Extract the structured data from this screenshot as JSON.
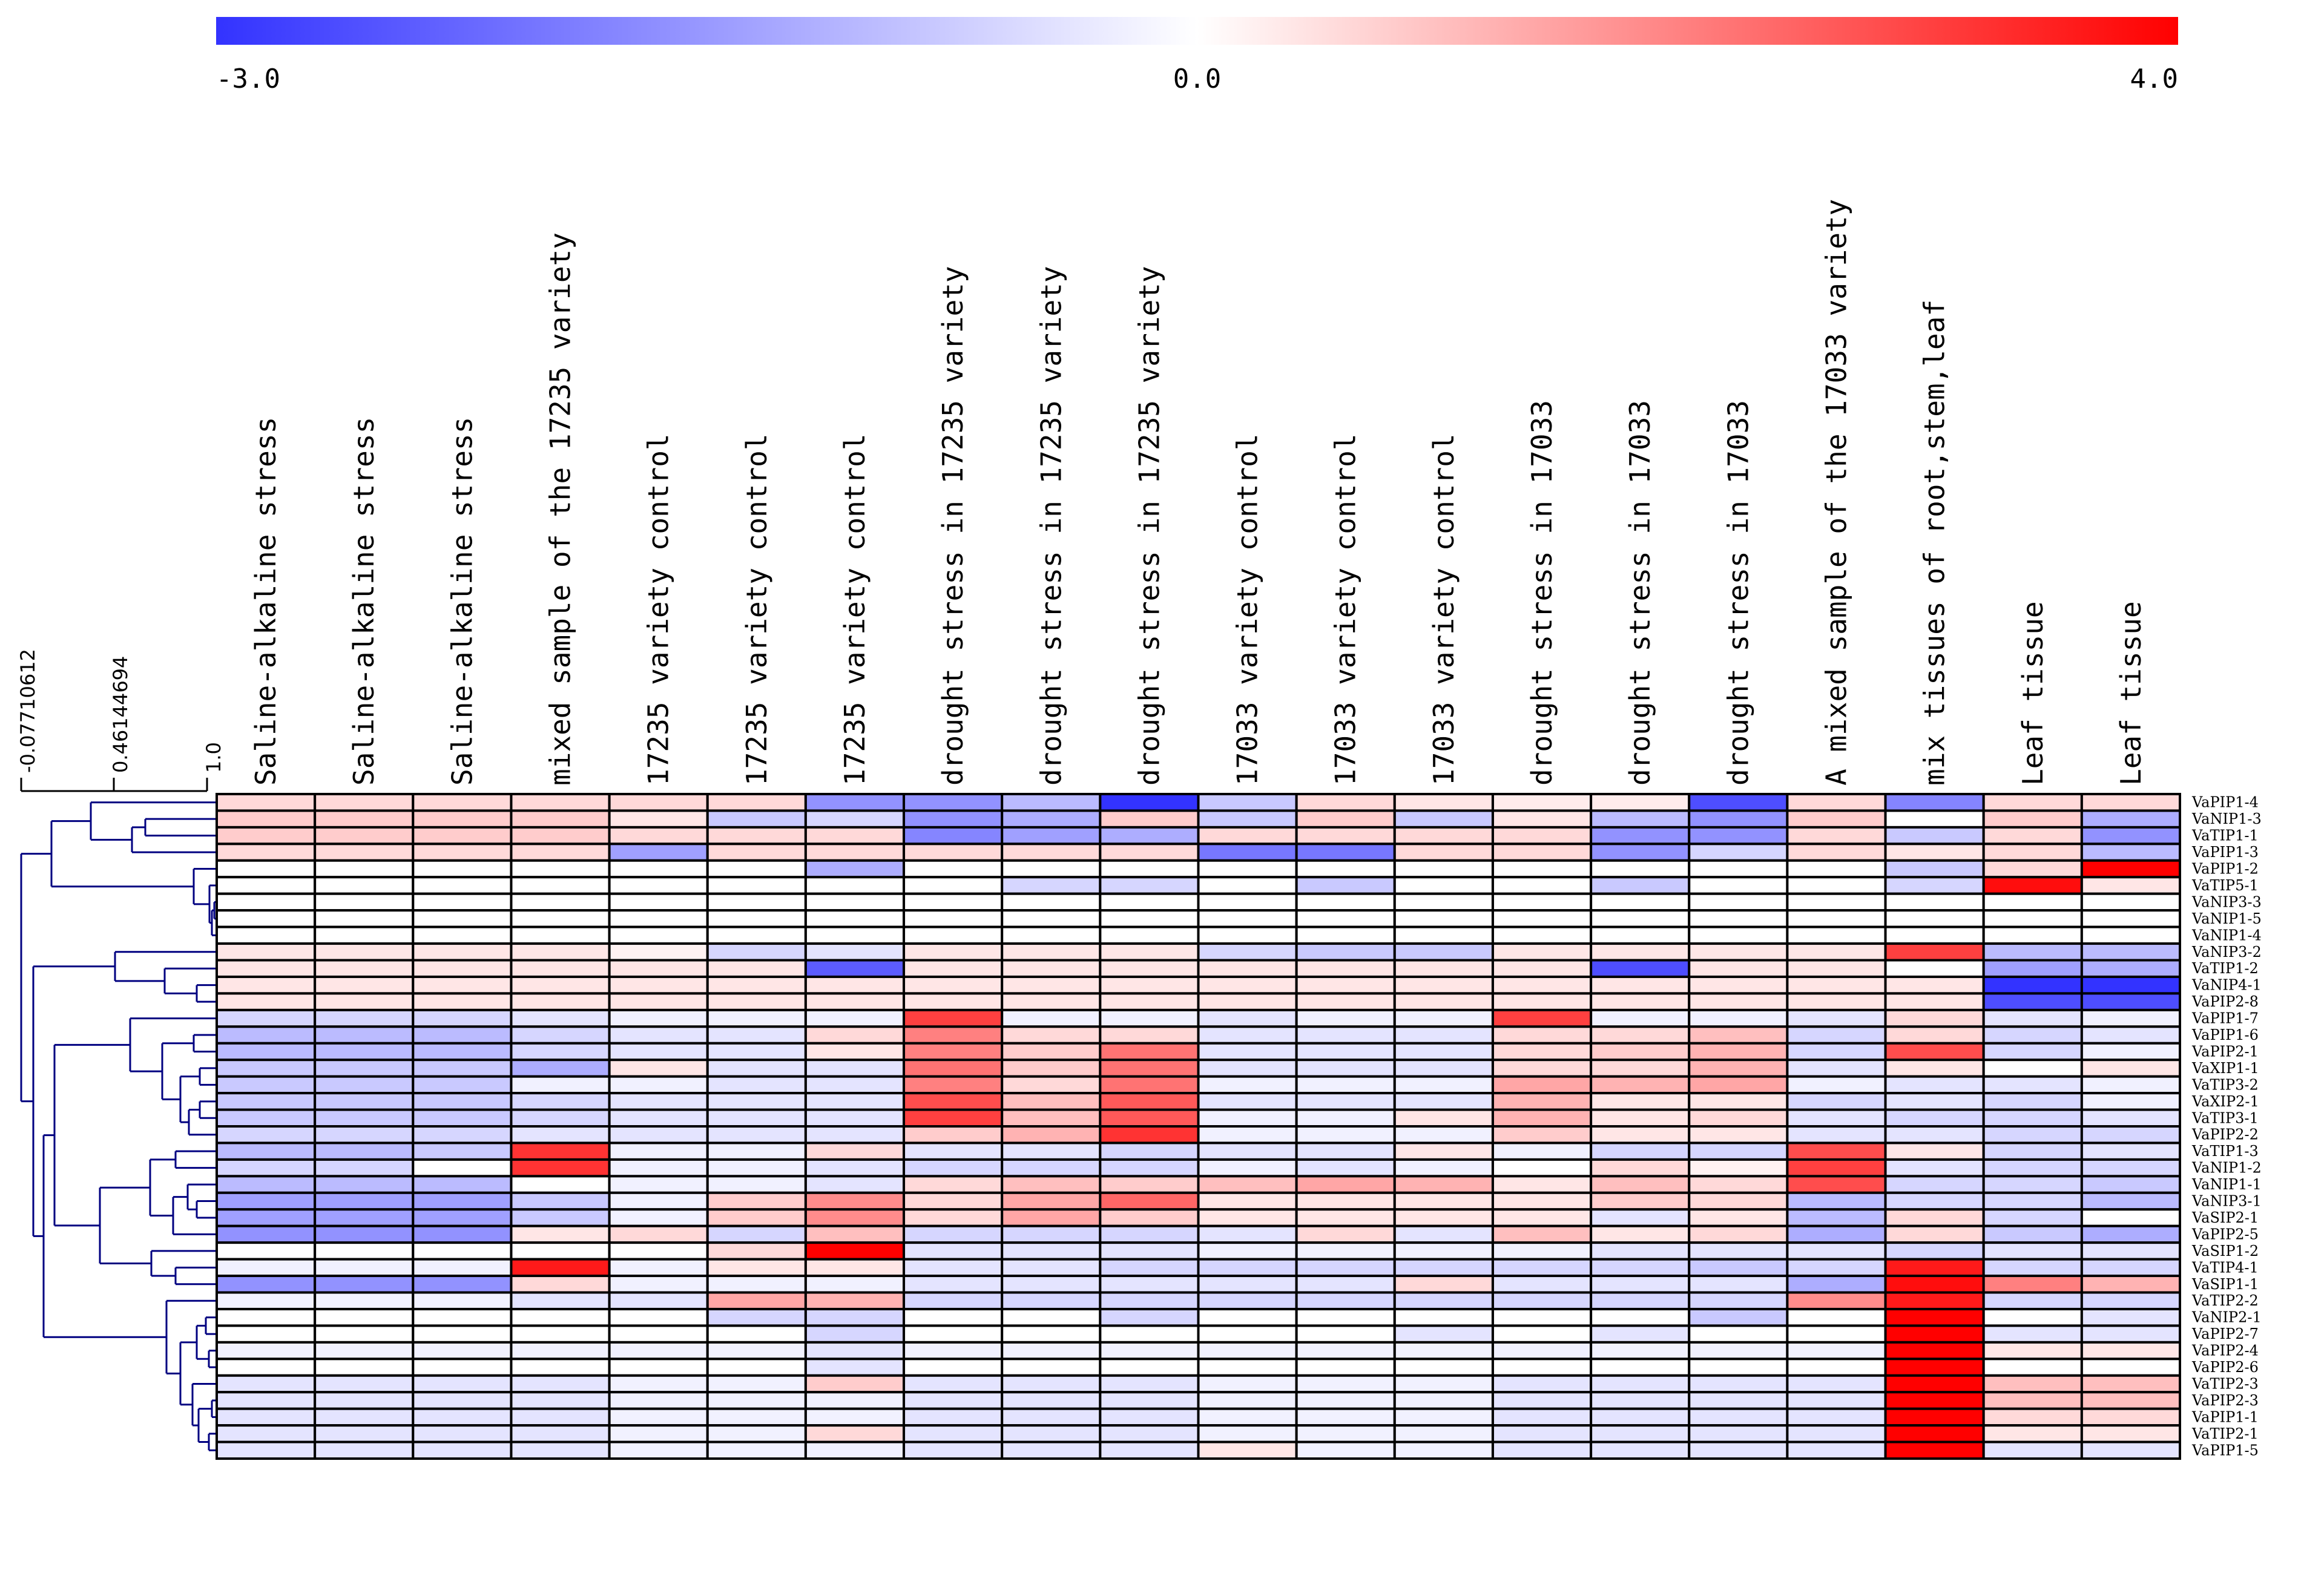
{
  "chart_data": {
    "type": "heatmap",
    "color_scale": {
      "min": -3.0,
      "mid": 0.0,
      "max": 4.0,
      "min_label": "-3.0",
      "mid_label": "0.0",
      "max_label": "4.0",
      "low_color": "#3333ff",
      "mid_color": "#ffffff",
      "high_color": "#ff0000"
    },
    "dendrogram_scale": [
      "-0.07710612",
      "0.46144694",
      "1.0"
    ],
    "columns": [
      "Saline-alkaline stress",
      "Saline-alkaline stress",
      "Saline-alkaline stress",
      "mixed sample of the 17235 variety",
      "17235 variety control",
      "17235 variety control",
      "17235 variety control",
      "drought stress in 17235 variety",
      "drought stress in 17235 variety",
      "drought stress in 17235 variety",
      "17033 variety control",
      "17033 variety control",
      "17033 variety control",
      "drought stress in 17033",
      "drought stress in 17033",
      "drought stress in 17033",
      "A mixed sample of the 17033 variety",
      "mix tissues of root,stem,leaf",
      "Leaf tissue",
      "Leaf tissue"
    ],
    "rows": [
      "VaPIP1-4",
      "VaNIP1-3",
      "VaTIP1-1",
      "VaPIP1-3",
      "VaPIP1-2",
      "VaTIP5-1",
      "VaNIP3-3",
      "VaNIP1-5",
      "VaNIP1-4",
      "VaNIP3-2",
      "VaTIP1-2",
      "VaNIP4-1",
      "VaPIP2-8",
      "VaPIP1-7",
      "VaPIP1-6",
      "VaPIP2-1",
      "VaXIP1-1",
      "VaTIP3-2",
      "VaXIP2-1",
      "VaTIP3-1",
      "VaPIP2-2",
      "VaTIP1-3",
      "VaNIP1-2",
      "VaNIP1-1",
      "VaNIP3-1",
      "VaSIP2-1",
      "VaPIP2-5",
      "VaSIP1-2",
      "VaTIP4-1",
      "VaSIP1-1",
      "VaTIP2-2",
      "VaNIP2-1",
      "VaPIP2-7",
      "VaPIP2-4",
      "VaPIP2-6",
      "VaTIP2-3",
      "VaPIP2-3",
      "VaPIP1-1",
      "VaTIP2-1",
      "VaPIP1-5"
    ],
    "values": [
      [
        0.6,
        0.6,
        0.6,
        0.6,
        0.6,
        0.6,
        -1.6,
        -1.6,
        -1.0,
        -3.0,
        -0.8,
        0.6,
        0.4,
        0.3,
        0.3,
        -2.6,
        0.6,
        -1.8,
        0.6,
        0.6
      ],
      [
        0.8,
        0.8,
        0.8,
        0.8,
        0.4,
        -0.8,
        -0.6,
        -1.6,
        -1.2,
        0.8,
        -0.8,
        0.8,
        -0.8,
        0.4,
        -1.0,
        -1.6,
        0.8,
        0.0,
        0.8,
        -1.2
      ],
      [
        0.8,
        0.8,
        0.8,
        0.8,
        0.6,
        0.6,
        0.6,
        -1.8,
        -1.4,
        -1.2,
        0.6,
        0.6,
        0.6,
        0.6,
        -1.6,
        -1.6,
        0.6,
        -0.8,
        0.6,
        -1.6
      ],
      [
        0.6,
        0.6,
        0.6,
        0.6,
        -1.4,
        0.6,
        0.6,
        0.6,
        0.6,
        0.6,
        -2.0,
        -2.0,
        0.6,
        0.6,
        -1.6,
        -0.6,
        0.6,
        0.4,
        0.6,
        -1.0
      ],
      [
        0.0,
        0.0,
        0.0,
        0.0,
        0.0,
        0.0,
        -1.2,
        0.0,
        0.0,
        0.0,
        0.0,
        0.0,
        0.0,
        0.0,
        0.0,
        0.0,
        0.0,
        -0.8,
        0.6,
        4.0
      ],
      [
        0.0,
        0.0,
        0.0,
        0.0,
        0.0,
        0.0,
        0.0,
        0.0,
        -0.6,
        -0.6,
        0.0,
        -0.8,
        0.0,
        0.0,
        -0.8,
        0.0,
        0.0,
        -0.6,
        3.8,
        0.4
      ],
      [
        0.0,
        0.0,
        0.0,
        0.0,
        0.0,
        0.0,
        0.0,
        0.0,
        0.0,
        0.0,
        0.0,
        0.0,
        0.0,
        0.0,
        0.0,
        0.0,
        0.0,
        0.0,
        0.0,
        0.0
      ],
      [
        0.0,
        0.0,
        0.0,
        0.0,
        0.0,
        0.0,
        0.0,
        0.0,
        0.0,
        0.0,
        0.0,
        0.0,
        0.0,
        0.0,
        0.0,
        0.0,
        0.0,
        0.0,
        0.0,
        0.0
      ],
      [
        0.0,
        0.0,
        0.0,
        0.0,
        0.0,
        0.0,
        0.0,
        0.0,
        0.0,
        0.0,
        0.0,
        0.0,
        0.0,
        0.0,
        0.0,
        0.0,
        0.0,
        0.0,
        0.0,
        0.0
      ],
      [
        0.4,
        0.4,
        0.4,
        0.4,
        0.2,
        -0.6,
        -0.4,
        0.4,
        0.4,
        0.4,
        -0.6,
        -0.8,
        -0.8,
        0.4,
        0.4,
        0.4,
        0.4,
        3.0,
        -1.0,
        -1.0
      ],
      [
        0.4,
        0.4,
        0.4,
        0.4,
        0.4,
        0.4,
        -2.4,
        0.4,
        0.4,
        0.4,
        0.4,
        0.4,
        0.4,
        0.4,
        -2.6,
        0.4,
        0.4,
        0.0,
        -1.4,
        -1.2
      ],
      [
        0.4,
        0.4,
        0.4,
        0.4,
        0.4,
        0.4,
        0.4,
        0.4,
        0.4,
        0.4,
        0.4,
        0.4,
        0.4,
        0.4,
        0.4,
        0.4,
        0.4,
        0.4,
        -3.0,
        -3.0
      ],
      [
        0.4,
        0.4,
        0.4,
        0.4,
        0.4,
        0.4,
        0.4,
        0.4,
        0.4,
        0.4,
        0.4,
        0.4,
        0.4,
        0.4,
        0.4,
        0.4,
        0.4,
        0.4,
        -2.6,
        -2.6
      ],
      [
        -0.6,
        -0.6,
        -0.6,
        -0.4,
        -0.2,
        -0.2,
        -0.2,
        3.0,
        -0.2,
        -0.2,
        -0.4,
        -0.2,
        -0.2,
        3.0,
        -0.2,
        -0.2,
        -0.4,
        0.6,
        -0.4,
        -0.2
      ],
      [
        -1.0,
        -1.0,
        -1.0,
        -0.6,
        -0.4,
        -0.4,
        0.6,
        2.0,
        0.6,
        0.6,
        -0.4,
        -0.4,
        -0.4,
        0.6,
        0.6,
        1.0,
        -0.6,
        0.6,
        -0.6,
        -0.4
      ],
      [
        -1.0,
        -1.0,
        -1.0,
        -0.6,
        -0.4,
        -0.4,
        0.4,
        2.0,
        0.8,
        2.2,
        -0.4,
        -0.4,
        -0.4,
        0.6,
        0.8,
        1.2,
        -0.6,
        2.8,
        -0.6,
        -0.2
      ],
      [
        -0.8,
        -0.8,
        -0.8,
        -1.2,
        0.4,
        -0.4,
        -0.4,
        2.2,
        0.8,
        2.2,
        -0.4,
        -0.4,
        -0.4,
        0.6,
        0.6,
        1.2,
        -0.4,
        0.4,
        0.0,
        0.4
      ],
      [
        -0.8,
        -0.8,
        -0.8,
        -0.2,
        -0.2,
        -0.4,
        -0.4,
        2.0,
        0.6,
        2.2,
        -0.2,
        -0.2,
        -0.2,
        1.4,
        1.2,
        1.4,
        -0.2,
        -0.4,
        -0.4,
        -0.2
      ],
      [
        -0.8,
        -0.8,
        -0.8,
        -0.6,
        -0.4,
        -0.4,
        -0.4,
        2.8,
        1.0,
        2.6,
        -0.4,
        -0.4,
        -0.4,
        1.2,
        0.4,
        0.4,
        -0.6,
        -0.4,
        -0.6,
        -0.2
      ],
      [
        -0.8,
        -0.8,
        -0.8,
        -0.6,
        -0.4,
        -0.4,
        -0.4,
        3.0,
        1.0,
        2.6,
        -0.2,
        -0.2,
        0.4,
        1.2,
        0.4,
        0.6,
        -0.4,
        -0.6,
        -0.6,
        -0.4
      ],
      [
        -0.6,
        -0.6,
        -0.6,
        -0.4,
        -0.4,
        -0.4,
        -0.4,
        0.8,
        1.2,
        3.2,
        -0.2,
        -0.2,
        -0.2,
        0.8,
        0.4,
        0.4,
        -0.4,
        -0.4,
        -0.6,
        -0.6
      ],
      [
        -1.0,
        -1.0,
        -0.8,
        3.2,
        -0.2,
        -0.2,
        0.6,
        -0.4,
        -0.4,
        -0.6,
        -0.4,
        -0.4,
        0.4,
        -0.2,
        -0.6,
        -0.6,
        2.8,
        0.4,
        -0.6,
        -0.4
      ],
      [
        -0.6,
        -0.6,
        0.0,
        3.2,
        -0.2,
        -0.2,
        -0.4,
        -0.6,
        -0.6,
        -0.6,
        -0.2,
        -0.4,
        -0.2,
        0.0,
        0.6,
        0.2,
        3.0,
        -0.4,
        -0.6,
        -0.6
      ],
      [
        -1.0,
        -1.0,
        -1.0,
        0.0,
        -0.2,
        -0.2,
        -0.4,
        0.6,
        1.0,
        0.8,
        1.0,
        1.4,
        1.2,
        0.4,
        1.0,
        0.6,
        2.8,
        -0.6,
        -0.6,
        -0.8
      ],
      [
        -1.4,
        -1.4,
        -1.4,
        -0.8,
        -0.2,
        0.8,
        1.8,
        0.6,
        1.4,
        2.4,
        0.4,
        0.4,
        0.4,
        0.4,
        0.8,
        0.6,
        -1.0,
        -0.6,
        -0.6,
        -1.0
      ],
      [
        -1.4,
        -1.4,
        -1.4,
        -0.8,
        -0.2,
        0.8,
        1.8,
        0.6,
        1.4,
        0.8,
        0.4,
        0.4,
        0.4,
        0.4,
        -0.4,
        0.4,
        -1.0,
        0.6,
        -0.6,
        0.0
      ],
      [
        -1.6,
        -1.6,
        -1.6,
        0.4,
        0.6,
        -0.6,
        1.0,
        -0.6,
        -0.6,
        -0.6,
        -0.4,
        0.6,
        -0.4,
        1.0,
        0.4,
        0.6,
        -1.2,
        0.6,
        -0.8,
        -1.2
      ],
      [
        0.0,
        0.0,
        0.0,
        0.0,
        0.0,
        0.6,
        4.0,
        -0.4,
        -0.4,
        -0.4,
        -0.2,
        -0.2,
        -0.2,
        -0.2,
        -0.4,
        -0.4,
        -0.4,
        -0.6,
        -0.4,
        -0.4
      ],
      [
        -0.2,
        -0.2,
        -0.2,
        3.6,
        -0.2,
        0.4,
        0.4,
        -0.4,
        -0.4,
        -0.6,
        -0.6,
        -0.6,
        -0.6,
        -0.6,
        -0.6,
        -0.8,
        -0.6,
        3.6,
        -0.6,
        -0.6
      ],
      [
        -1.6,
        -1.6,
        -1.6,
        0.6,
        -0.2,
        -0.2,
        -0.2,
        -0.4,
        -0.4,
        -0.4,
        -0.4,
        -0.4,
        0.6,
        -0.4,
        -0.4,
        -0.4,
        -1.2,
        3.8,
        2.0,
        1.2
      ],
      [
        -0.2,
        -0.2,
        -0.2,
        -0.4,
        -0.4,
        1.4,
        1.2,
        -0.6,
        -0.6,
        -0.6,
        -0.6,
        -0.6,
        -0.6,
        -0.6,
        -0.6,
        -0.6,
        1.8,
        3.6,
        -0.6,
        -0.6
      ],
      [
        0.0,
        0.0,
        0.0,
        0.0,
        0.0,
        -0.6,
        -0.6,
        0.0,
        0.0,
        -0.6,
        0.0,
        0.0,
        0.0,
        0.0,
        0.0,
        -0.8,
        0.0,
        4.0,
        0.0,
        -0.4
      ],
      [
        0.0,
        0.0,
        0.0,
        0.0,
        0.0,
        0.0,
        -0.6,
        0.0,
        0.0,
        0.0,
        0.0,
        0.0,
        -0.4,
        0.0,
        -0.4,
        0.0,
        0.0,
        4.0,
        -0.4,
        -0.4
      ],
      [
        -0.2,
        -0.2,
        -0.2,
        -0.2,
        -0.2,
        -0.2,
        -0.4,
        -0.2,
        -0.2,
        -0.2,
        -0.2,
        -0.2,
        -0.2,
        -0.2,
        -0.2,
        -0.2,
        -0.2,
        4.0,
        0.4,
        0.4
      ],
      [
        0.0,
        0.0,
        0.0,
        0.0,
        0.0,
        0.0,
        -0.4,
        0.0,
        0.0,
        0.0,
        0.0,
        0.0,
        0.0,
        0.0,
        0.0,
        0.0,
        0.0,
        4.0,
        0.0,
        0.0
      ],
      [
        -0.4,
        -0.4,
        -0.4,
        -0.4,
        -0.2,
        -0.2,
        0.8,
        -0.4,
        -0.4,
        -0.4,
        -0.2,
        -0.2,
        -0.2,
        -0.4,
        -0.4,
        -0.4,
        -0.4,
        4.0,
        1.0,
        1.0
      ],
      [
        -0.4,
        -0.4,
        -0.4,
        -0.4,
        -0.2,
        -0.2,
        -0.2,
        -0.4,
        -0.4,
        -0.4,
        -0.2,
        -0.2,
        -0.2,
        -0.4,
        -0.4,
        -0.4,
        -0.4,
        4.0,
        1.0,
        1.0
      ],
      [
        -0.4,
        -0.4,
        -0.4,
        -0.4,
        -0.2,
        -0.2,
        -0.2,
        -0.4,
        -0.4,
        -0.4,
        -0.2,
        -0.2,
        -0.2,
        -0.4,
        -0.4,
        -0.4,
        -0.4,
        4.0,
        0.6,
        0.6
      ],
      [
        -0.4,
        -0.4,
        -0.4,
        -0.4,
        -0.2,
        -0.2,
        0.6,
        -0.4,
        -0.4,
        -0.4,
        -0.2,
        -0.2,
        -0.2,
        -0.4,
        -0.4,
        -0.4,
        -0.4,
        4.0,
        0.4,
        0.4
      ],
      [
        -0.4,
        -0.4,
        -0.4,
        -0.4,
        -0.2,
        -0.2,
        -0.2,
        -0.4,
        -0.4,
        -0.4,
        0.4,
        -0.2,
        -0.2,
        -0.4,
        -0.4,
        -0.4,
        -0.4,
        4.0,
        -0.4,
        -0.4
      ]
    ]
  }
}
